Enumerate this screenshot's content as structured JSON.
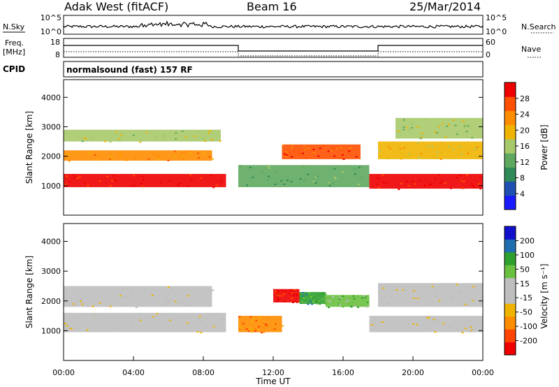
{
  "header": {
    "station": "Adak West (fitACF)",
    "beam": "Beam 16",
    "date": "25/Mar/2014"
  },
  "nsky_panel": {
    "left_label": "N.Sky",
    "right_label": "N.Search",
    "left_ticks": [
      "10^5",
      "10^0"
    ],
    "right_ticks": [
      "10^5",
      "10^0"
    ]
  },
  "freq_panel": {
    "left_label_line1": "Freq.",
    "left_label_line2": "[MHz]",
    "right_label": "Nave",
    "left_ticks": [
      "18",
      "8"
    ],
    "right_ticks": [
      "60",
      "0"
    ]
  },
  "cpid_panel": {
    "label": "CPID",
    "text": "normalsound (fast) 157 RF"
  },
  "colors": {
    "power_scale": [
      "#1a1aff",
      "#1f4fb0",
      "#2e8b57",
      "#5fa85f",
      "#a8c96a",
      "#f0b400",
      "#ff8c00",
      "#ff5000",
      "#ee0000"
    ],
    "velocity_scale": [
      "#ee0000",
      "#ff4500",
      "#ff8c00",
      "#f0b400",
      "#bebebe",
      "#bebebe",
      "#6ac040",
      "#2ea02e",
      "#1f6fb0",
      "#1010cc"
    ]
  },
  "chart_data": [
    {
      "type": "heatmap",
      "panel": "power",
      "ylabel": "Slant Range [km]",
      "yticks": [
        "1000",
        "2000",
        "3000",
        "4000"
      ],
      "ylim": [
        0,
        4600
      ],
      "xlim": [
        0,
        24
      ],
      "colorbar_label": "Power [dB]",
      "colorbar_ticks": [
        "4",
        "8",
        "12",
        "16",
        "20",
        "24",
        "28"
      ],
      "bands": [
        {
          "t": [
            0,
            9.3
          ],
          "r": [
            950,
            1400
          ],
          "level": 8
        },
        {
          "t": [
            0,
            8.5
          ],
          "r": [
            1850,
            2200
          ],
          "level": 6
        },
        {
          "t": [
            0,
            9.0
          ],
          "r": [
            2500,
            2900
          ],
          "level": 4
        },
        {
          "t": [
            10.0,
            17.5
          ],
          "r": [
            950,
            1700
          ],
          "level": 3
        },
        {
          "t": [
            12.5,
            17.0
          ],
          "r": [
            1900,
            2400
          ],
          "level": 7
        },
        {
          "t": [
            17.5,
            24
          ],
          "r": [
            900,
            1400
          ],
          "level": 8
        },
        {
          "t": [
            18.0,
            24
          ],
          "r": [
            1900,
            2500
          ],
          "level": 5
        },
        {
          "t": [
            19.0,
            24
          ],
          "r": [
            2600,
            3300
          ],
          "level": 4
        }
      ]
    },
    {
      "type": "heatmap",
      "panel": "velocity",
      "ylabel": "Slant Range [km]",
      "yticks": [
        "1000",
        "2000",
        "3000",
        "4000"
      ],
      "ylim": [
        0,
        4600
      ],
      "xlim": [
        0,
        24
      ],
      "xlabel": "Time UT",
      "xticks": [
        "00:00",
        "04:00",
        "08:00",
        "12:00",
        "16:00",
        "20:00",
        "00:00"
      ],
      "colorbar_label": "Velocity [m s⁻¹]",
      "colorbar_ticks": [
        "-200",
        "-100",
        "-50",
        "-15",
        "15",
        "50",
        "100",
        "200"
      ],
      "bands": [
        {
          "t": [
            0,
            9.3
          ],
          "r": [
            950,
            1600
          ],
          "level": 4
        },
        {
          "t": [
            0,
            8.5
          ],
          "r": [
            1800,
            2500
          ],
          "level": 4
        },
        {
          "t": [
            10.0,
            12.5
          ],
          "r": [
            950,
            1500
          ],
          "level": 2
        },
        {
          "t": [
            12.0,
            13.5
          ],
          "r": [
            1950,
            2400
          ],
          "level": 0
        },
        {
          "t": [
            13.5,
            15.0
          ],
          "r": [
            1900,
            2300
          ],
          "level": 7
        },
        {
          "t": [
            15.0,
            17.5
          ],
          "r": [
            1800,
            2200
          ],
          "level": 6
        },
        {
          "t": [
            17.5,
            24
          ],
          "r": [
            950,
            1500
          ],
          "level": 4
        },
        {
          "t": [
            18.0,
            24
          ],
          "r": [
            1800,
            2600
          ],
          "level": 4
        }
      ]
    }
  ]
}
